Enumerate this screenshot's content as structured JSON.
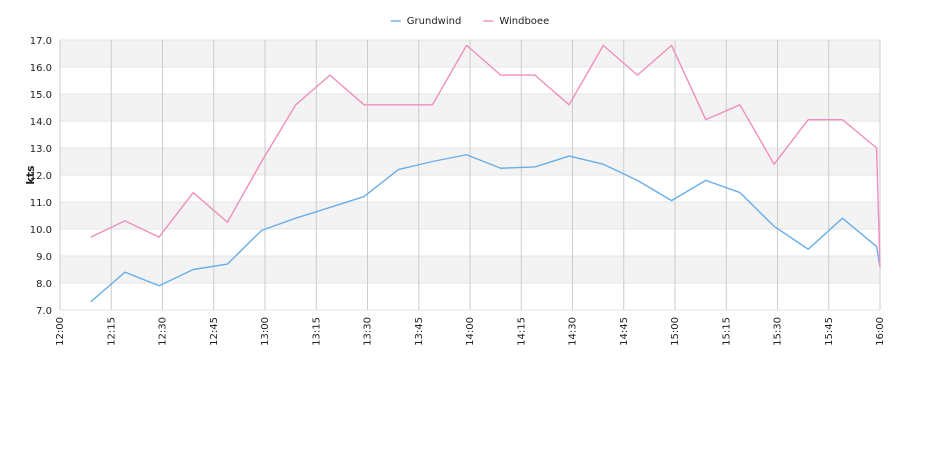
{
  "colors": {
    "band": "#f3f3f3",
    "hgrid": "#e6e6e6",
    "vgrid": "#cccccc",
    "text": "#222222"
  },
  "chart_data": {
    "type": "line",
    "title": "",
    "xlabel": "",
    "ylabel": "kts",
    "grid": true,
    "legend_position": "top-center",
    "xlim": [
      "12:00",
      "16:00"
    ],
    "ylim": [
      7.0,
      17.0
    ],
    "x_ticks": [
      "12:00",
      "12:15",
      "12:30",
      "12:45",
      "13:00",
      "13:15",
      "13:30",
      "13:45",
      "14:00",
      "14:15",
      "14:30",
      "14:45",
      "15:00",
      "15:15",
      "15:30",
      "15:45",
      "16:00"
    ],
    "y_ticks": [
      "7.0",
      "8.0",
      "9.0",
      "10.0",
      "11.0",
      "12.0",
      "13.0",
      "14.0",
      "15.0",
      "16.0",
      "17.0"
    ],
    "series": [
      {
        "name": "Grundwind",
        "color": "#6aaee8",
        "x": [
          "12:09",
          "12:19",
          "12:29",
          "12:39",
          "12:49",
          "12:59",
          "13:09",
          "13:19",
          "13:29",
          "13:39",
          "13:49",
          "13:59",
          "14:09",
          "14:19",
          "14:29",
          "14:39",
          "14:49",
          "14:59",
          "15:09",
          "15:19",
          "15:29",
          "15:39",
          "15:49",
          "15:59",
          "16:00"
        ],
        "values": [
          7.3,
          8.4,
          7.9,
          8.5,
          8.7,
          9.95,
          10.4,
          10.8,
          11.2,
          12.2,
          12.5,
          12.75,
          12.25,
          12.3,
          12.7,
          12.4,
          11.8,
          11.05,
          11.8,
          11.35,
          10.1,
          9.25,
          10.4,
          9.35,
          8.6
        ]
      },
      {
        "name": "Windboee",
        "color": "#f08fbd",
        "x": [
          "12:09",
          "12:19",
          "12:29",
          "12:39",
          "12:49",
          "12:59",
          "13:09",
          "13:19",
          "13:29",
          "13:39",
          "13:49",
          "13:59",
          "14:09",
          "14:19",
          "14:29",
          "14:39",
          "14:49",
          "14:59",
          "15:09",
          "15:19",
          "15:29",
          "15:39",
          "15:49",
          "15:59",
          "16:00"
        ],
        "values": [
          9.7,
          10.3,
          9.7,
          11.35,
          10.25,
          12.5,
          14.6,
          15.7,
          14.6,
          14.6,
          14.6,
          16.8,
          15.7,
          15.7,
          14.6,
          16.8,
          15.7,
          16.8,
          14.05,
          14.6,
          12.4,
          14.05,
          14.05,
          13.0,
          8.6
        ]
      }
    ]
  }
}
